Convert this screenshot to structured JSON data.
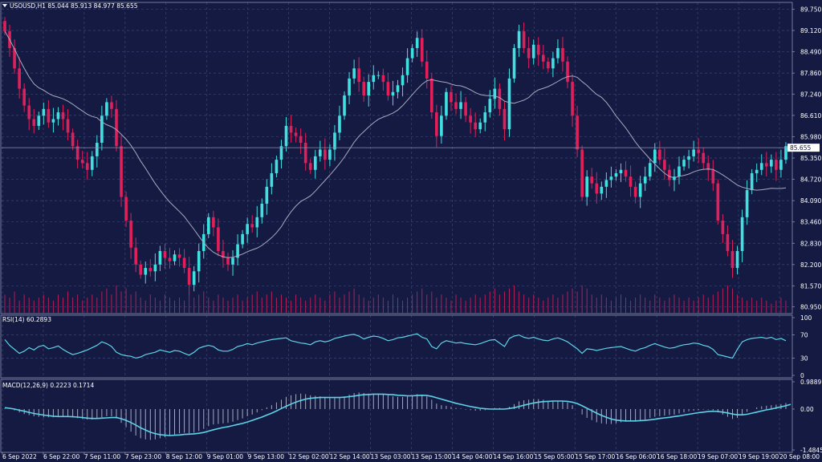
{
  "header": {
    "symbol_line": "USOUSD,H1  85.044 85.913 84.977 85.655",
    "dropdown_icon": "triangle-down-icon"
  },
  "colors": {
    "background": "#141a42",
    "grid": "#3c4575",
    "separator": "#8c90b0",
    "bull": "#40e0e0",
    "bear": "#e0205a",
    "ma": "#a7abc1",
    "volume": "#b0205a",
    "rsi": "#5ed2e6",
    "macd_hist": "#a7abc1",
    "macd_signal": "#5ed2e6",
    "price_tag_bg": "#ffffff",
    "text": "#ffffff"
  },
  "chart_data": [
    {
      "type": "candlestick",
      "pane": "price",
      "title": "USOUSD,H1",
      "ohlc_last": {
        "open": 85.044,
        "high": 85.913,
        "low": 84.977,
        "close": 85.655
      },
      "current_price_label": "85.655",
      "y_ticks": [
        "89.750",
        "89.120",
        "88.490",
        "87.860",
        "87.240",
        "86.610",
        "85.980",
        "85.350",
        "84.720",
        "84.090",
        "83.460",
        "82.830",
        "82.200",
        "81.570",
        "80.950"
      ],
      "ylim": [
        80.75,
        89.95
      ],
      "x_ticks": [
        "6 Sep 2022",
        "6 Sep 22:00",
        "7 Sep 11:00",
        "7 Sep 23:00",
        "8 Sep 12:00",
        "9 Sep 01:00",
        "9 Sep 13:00",
        "12 Sep 02:00",
        "12 Sep 14:00",
        "13 Sep 03:00",
        "13 Sep 15:00",
        "14 Sep 04:00",
        "14 Sep 16:00",
        "15 Sep 05:00",
        "15 Sep 17:00",
        "16 Sep 06:00",
        "16 Sep 18:00",
        "19 Sep 07:00",
        "19 Sep 19:00",
        "20 Sep 08:00"
      ],
      "closes": [
        89.1,
        88.6,
        88.0,
        87.4,
        86.9,
        86.5,
        86.3,
        86.6,
        86.8,
        86.4,
        86.5,
        86.7,
        86.5,
        86.1,
        85.7,
        85.3,
        85.2,
        85.0,
        85.4,
        85.8,
        86.6,
        87.0,
        86.8,
        85.7,
        84.2,
        83.5,
        82.7,
        82.2,
        81.9,
        82.1,
        82.0,
        82.2,
        82.6,
        82.4,
        82.3,
        82.5,
        82.4,
        82.1,
        81.6,
        82.0,
        82.6,
        83.1,
        83.6,
        83.3,
        82.6,
        82.4,
        82.2,
        82.4,
        82.8,
        83.1,
        83.4,
        83.3,
        83.6,
        84.0,
        84.5,
        84.9,
        85.3,
        85.7,
        86.3,
        86.1,
        86.0,
        85.8,
        85.2,
        85.0,
        85.4,
        85.6,
        85.3,
        85.6,
        86.1,
        86.6,
        87.2,
        87.7,
        88.0,
        87.6,
        87.2,
        87.6,
        87.8,
        87.8,
        87.6,
        87.2,
        87.3,
        87.5,
        87.8,
        88.3,
        88.6,
        88.9,
        88.2,
        87.7,
        86.7,
        86.0,
        86.6,
        87.3,
        87.0,
        86.8,
        87.0,
        86.6,
        86.4,
        86.2,
        86.4,
        86.7,
        87.1,
        87.4,
        86.8,
        86.2,
        87.7,
        88.6,
        89.1,
        88.6,
        88.3,
        88.7,
        88.4,
        88.2,
        88.0,
        88.3,
        88.6,
        88.2,
        87.6,
        86.6,
        85.6,
        84.2,
        84.8,
        84.6,
        84.3,
        84.5,
        84.7,
        84.8,
        84.9,
        85.0,
        84.8,
        84.5,
        84.2,
        84.6,
        84.8,
        85.2,
        85.6,
        85.3,
        85.0,
        84.7,
        84.8,
        85.1,
        85.3,
        85.4,
        85.6,
        85.5,
        85.2,
        85.0,
        84.6,
        83.5,
        83.1,
        82.6,
        82.1,
        82.6,
        83.6,
        84.4,
        84.9,
        85.0,
        85.2,
        85.1,
        85.3,
        85.0,
        85.3,
        85.7
      ],
      "moving_average": {
        "period": 20,
        "shown": true
      },
      "volume": {
        "shown": true,
        "values": [
          0.6,
          0.5,
          0.7,
          0.4,
          0.6,
          0.5,
          0.4,
          0.5,
          0.6,
          0.5,
          0.4,
          0.6,
          0.5,
          0.7,
          0.5,
          0.6,
          0.4,
          0.5,
          0.6,
          0.5,
          0.7,
          0.8,
          0.6,
          0.9,
          0.7,
          0.8,
          0.6,
          0.7,
          0.5,
          0.4,
          0.6,
          0.5,
          0.4,
          0.6,
          0.5,
          0.4,
          0.5,
          0.4,
          0.6,
          0.5,
          0.6,
          0.7,
          0.5,
          0.4,
          0.6,
          0.5,
          0.4,
          0.5,
          0.6,
          0.4,
          0.5,
          0.6,
          0.7,
          0.5,
          0.6,
          0.7,
          0.5,
          0.6,
          0.5,
          0.4,
          0.6,
          0.5,
          0.4,
          0.5,
          0.6,
          0.5,
          0.4,
          0.6,
          0.7,
          0.5,
          0.6,
          0.7,
          0.8,
          0.6,
          0.5,
          0.4,
          0.5,
          0.6,
          0.5,
          0.4,
          0.6,
          0.5,
          0.4,
          0.5,
          0.6,
          0.7,
          0.8,
          0.6,
          0.7,
          0.5,
          0.6,
          0.5,
          0.4,
          0.6,
          0.5,
          0.4,
          0.5,
          0.6,
          0.5,
          0.6,
          0.7,
          0.8,
          0.6,
          0.7,
          0.8,
          0.9,
          0.7,
          0.6,
          0.5,
          0.6,
          0.5,
          0.4,
          0.5,
          0.6,
          0.5,
          0.6,
          0.7,
          0.8,
          0.7,
          0.9,
          0.8,
          0.6,
          0.5,
          0.6,
          0.5,
          0.4,
          0.5,
          0.6,
          0.5,
          0.4,
          0.5,
          0.6,
          0.5,
          0.4,
          0.6,
          0.5,
          0.4,
          0.5,
          0.6,
          0.5,
          0.4,
          0.5,
          0.4,
          0.5,
          0.6,
          0.5,
          0.6,
          0.7,
          0.8,
          0.9,
          0.8,
          0.6,
          0.5,
          0.4,
          0.5,
          0.4,
          0.5,
          0.4,
          0.3,
          0.4,
          0.5,
          0.4
        ]
      }
    },
    {
      "type": "line",
      "pane": "rsi",
      "title": "RSI(14) 60.2893",
      "y_ticks": [
        "100",
        "70",
        "30",
        "0"
      ],
      "ylim": [
        0,
        100
      ],
      "level_lines": [
        70,
        30
      ],
      "values": [
        62,
        52,
        45,
        38,
        42,
        48,
        44,
        50,
        52,
        46,
        48,
        51,
        45,
        40,
        36,
        38,
        41,
        44,
        48,
        52,
        58,
        55,
        50,
        40,
        36,
        34,
        33,
        30,
        32,
        36,
        38,
        40,
        44,
        42,
        40,
        43,
        42,
        38,
        35,
        40,
        47,
        50,
        52,
        50,
        44,
        42,
        42,
        45,
        50,
        52,
        55,
        53,
        56,
        58,
        60,
        62,
        63,
        64,
        65,
        60,
        58,
        56,
        55,
        53,
        58,
        60,
        58,
        60,
        64,
        66,
        68,
        70,
        71,
        68,
        63,
        66,
        68,
        67,
        64,
        60,
        62,
        65,
        66,
        68,
        70,
        72,
        66,
        63,
        50,
        46,
        56,
        60,
        58,
        56,
        57,
        55,
        54,
        53,
        55,
        58,
        61,
        62,
        56,
        50,
        64,
        68,
        70,
        66,
        64,
        66,
        63,
        61,
        60,
        63,
        65,
        62,
        58,
        52,
        46,
        38,
        46,
        45,
        43,
        45,
        47,
        48,
        49,
        50,
        47,
        44,
        42,
        46,
        48,
        52,
        55,
        52,
        49,
        47,
        48,
        51,
        53,
        54,
        56,
        55,
        52,
        50,
        45,
        36,
        34,
        32,
        30,
        45,
        58,
        62,
        64,
        65,
        66,
        64,
        66,
        62,
        64,
        60
      ]
    },
    {
      "type": "bar+line",
      "pane": "macd",
      "title": "MACD(12,26,9) 0.2223 0.1714",
      "y_ticks": [
        "0.9889",
        "0.00",
        "-1.4845"
      ],
      "ylim": [
        -1.4845,
        0.9889
      ],
      "histogram": [
        0.02,
        0.0,
        -0.05,
        -0.12,
        -0.18,
        -0.22,
        -0.26,
        -0.28,
        -0.3,
        -0.3,
        -0.3,
        -0.28,
        -0.27,
        -0.28,
        -0.3,
        -0.33,
        -0.36,
        -0.38,
        -0.38,
        -0.36,
        -0.3,
        -0.26,
        -0.26,
        -0.34,
        -0.5,
        -0.66,
        -0.82,
        -0.96,
        -1.06,
        -1.1,
        -1.12,
        -1.1,
        -1.06,
        -1.02,
        -0.98,
        -0.92,
        -0.88,
        -0.86,
        -0.88,
        -0.86,
        -0.8,
        -0.72,
        -0.62,
        -0.56,
        -0.54,
        -0.52,
        -0.5,
        -0.46,
        -0.4,
        -0.34,
        -0.26,
        -0.2,
        -0.12,
        -0.04,
        0.06,
        0.14,
        0.24,
        0.34,
        0.44,
        0.5,
        0.54,
        0.56,
        0.54,
        0.5,
        0.48,
        0.46,
        0.42,
        0.4,
        0.4,
        0.42,
        0.46,
        0.52,
        0.58,
        0.6,
        0.58,
        0.56,
        0.56,
        0.56,
        0.54,
        0.5,
        0.46,
        0.44,
        0.44,
        0.46,
        0.5,
        0.54,
        0.52,
        0.46,
        0.34,
        0.2,
        0.14,
        0.12,
        0.08,
        0.04,
        0.02,
        -0.02,
        -0.04,
        -0.06,
        -0.06,
        -0.04,
        0.0,
        0.04,
        0.04,
        0.0,
        0.08,
        0.18,
        0.28,
        0.32,
        0.34,
        0.36,
        0.36,
        0.34,
        0.3,
        0.3,
        0.3,
        0.28,
        0.24,
        0.14,
        0.0,
        -0.2,
        -0.32,
        -0.4,
        -0.48,
        -0.52,
        -0.54,
        -0.54,
        -0.52,
        -0.48,
        -0.46,
        -0.44,
        -0.44,
        -0.42,
        -0.38,
        -0.32,
        -0.28,
        -0.26,
        -0.24,
        -0.22,
        -0.2,
        -0.16,
        -0.12,
        -0.08,
        -0.06,
        -0.04,
        -0.02,
        -0.02,
        -0.04,
        -0.12,
        -0.2,
        -0.28,
        -0.36,
        -0.32,
        -0.22,
        -0.1,
        0.0,
        0.06,
        0.1,
        0.12,
        0.14,
        0.16,
        0.18,
        0.22
      ],
      "signal": [
        0.05,
        0.03,
        0.0,
        -0.04,
        -0.08,
        -0.12,
        -0.16,
        -0.19,
        -0.22,
        -0.24,
        -0.26,
        -0.27,
        -0.27,
        -0.27,
        -0.28,
        -0.29,
        -0.31,
        -0.33,
        -0.34,
        -0.34,
        -0.33,
        -0.32,
        -0.31,
        -0.31,
        -0.35,
        -0.41,
        -0.49,
        -0.58,
        -0.68,
        -0.76,
        -0.84,
        -0.89,
        -0.93,
        -0.95,
        -0.96,
        -0.95,
        -0.94,
        -0.92,
        -0.91,
        -0.9,
        -0.88,
        -0.85,
        -0.8,
        -0.75,
        -0.71,
        -0.67,
        -0.64,
        -0.6,
        -0.56,
        -0.52,
        -0.47,
        -0.41,
        -0.35,
        -0.29,
        -0.22,
        -0.15,
        -0.07,
        0.02,
        0.1,
        0.18,
        0.25,
        0.31,
        0.36,
        0.39,
        0.41,
        0.42,
        0.42,
        0.42,
        0.42,
        0.42,
        0.43,
        0.45,
        0.47,
        0.5,
        0.52,
        0.53,
        0.54,
        0.54,
        0.54,
        0.53,
        0.52,
        0.5,
        0.49,
        0.48,
        0.48,
        0.49,
        0.5,
        0.49,
        0.46,
        0.41,
        0.36,
        0.31,
        0.26,
        0.21,
        0.17,
        0.13,
        0.09,
        0.06,
        0.03,
        0.01,
        0.0,
        0.0,
        0.0,
        0.0,
        0.02,
        0.05,
        0.09,
        0.14,
        0.18,
        0.22,
        0.25,
        0.27,
        0.28,
        0.29,
        0.29,
        0.29,
        0.28,
        0.25,
        0.2,
        0.12,
        0.03,
        -0.06,
        -0.15,
        -0.23,
        -0.3,
        -0.36,
        -0.4,
        -0.42,
        -0.43,
        -0.43,
        -0.43,
        -0.42,
        -0.41,
        -0.39,
        -0.37,
        -0.34,
        -0.32,
        -0.3,
        -0.27,
        -0.25,
        -0.22,
        -0.19,
        -0.16,
        -0.13,
        -0.11,
        -0.09,
        -0.08,
        -0.09,
        -0.11,
        -0.14,
        -0.18,
        -0.21,
        -0.21,
        -0.19,
        -0.15,
        -0.11,
        -0.07,
        -0.03,
        0.0,
        0.04,
        0.08,
        0.12,
        0.17
      ]
    }
  ]
}
